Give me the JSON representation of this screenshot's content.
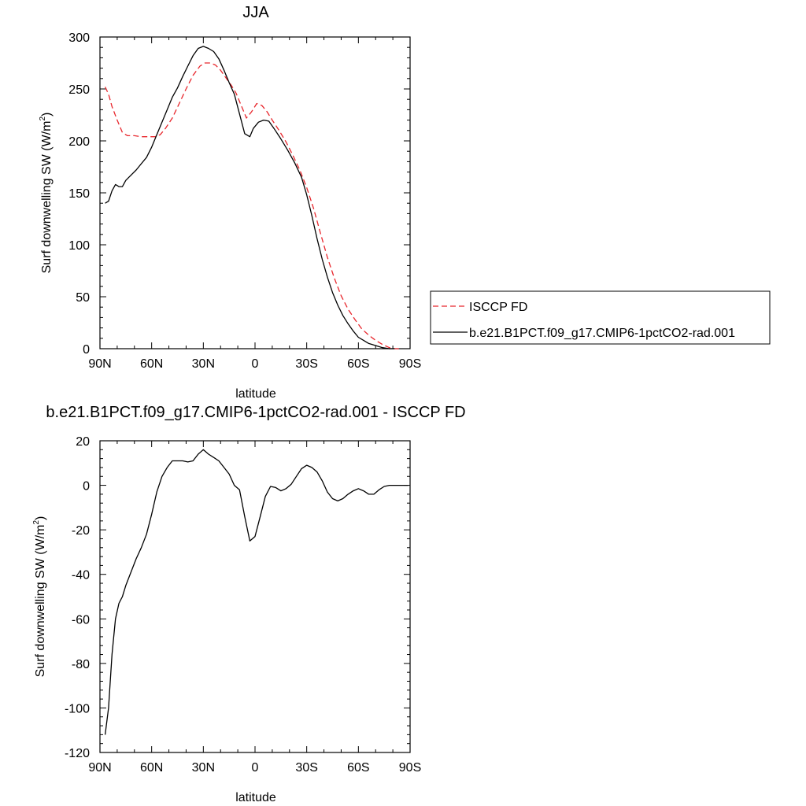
{
  "chart_data": [
    {
      "type": "line",
      "title": "JJA",
      "xlabel": "latitude",
      "ylabel_main": "Surf downwelling SW (W/m",
      "ylabel_sup": "2",
      "ylabel_end": ")",
      "xlim": [
        90,
        -90
      ],
      "ylim": [
        0,
        300
      ],
      "x_ticks": [
        90,
        60,
        30,
        0,
        -30,
        -60,
        -90
      ],
      "x_tick_labels": [
        "90N",
        "60N",
        "30N",
        "0",
        "30S",
        "60S",
        "90S"
      ],
      "y_ticks": [
        0,
        50,
        100,
        150,
        200,
        250,
        300
      ],
      "y_tick_labels": [
        "0",
        "50",
        "100",
        "150",
        "200",
        "250",
        "300"
      ],
      "legend_position": "right",
      "series": [
        {
          "name": "ISCCP FD",
          "color": "#e8262c",
          "dash": "dashed",
          "points": [
            [
              87,
              252
            ],
            [
              85,
              245
            ],
            [
              83,
              233
            ],
            [
              80,
              220
            ],
            [
              77,
              208
            ],
            [
              74,
              205
            ],
            [
              70,
              205
            ],
            [
              66,
              204
            ],
            [
              62,
              204
            ],
            [
              58,
              204
            ],
            [
              55,
              206
            ],
            [
              52,
              212
            ],
            [
              48,
              222
            ],
            [
              44,
              236
            ],
            [
              40,
              250
            ],
            [
              36,
              263
            ],
            [
              32,
              272
            ],
            [
              29,
              275
            ],
            [
              26,
              275
            ],
            [
              23,
              273
            ],
            [
              20,
              268
            ],
            [
              17,
              261
            ],
            [
              14,
              254
            ],
            [
              11,
              246
            ],
            [
              8,
              234
            ],
            [
              5,
              222
            ],
            [
              2,
              228
            ],
            [
              -1,
              236
            ],
            [
              -4,
              234
            ],
            [
              -7,
              228
            ],
            [
              -10,
              220
            ],
            [
              -14,
              210
            ],
            [
              -18,
              199
            ],
            [
              -22,
              186
            ],
            [
              -26,
              172
            ],
            [
              -30,
              155
            ],
            [
              -34,
              135
            ],
            [
              -38,
              111
            ],
            [
              -42,
              88
            ],
            [
              -46,
              68
            ],
            [
              -50,
              51
            ],
            [
              -54,
              38
            ],
            [
              -58,
              28
            ],
            [
              -62,
              19
            ],
            [
              -66,
              13
            ],
            [
              -70,
              8
            ],
            [
              -74,
              4
            ],
            [
              -78,
              1
            ],
            [
              -81,
              0
            ],
            [
              -85,
              0
            ]
          ]
        },
        {
          "name": "b.e21.B1PCT.f09_g17.CMIP6-1pctCO2-rad.001",
          "color": "#000000",
          "dash": "solid",
          "points": [
            [
              87,
              140
            ],
            [
              85,
              142
            ],
            [
              83,
              152
            ],
            [
              81,
              158
            ],
            [
              79,
              156
            ],
            [
              77,
              156
            ],
            [
              75,
              162
            ],
            [
              72,
              167
            ],
            [
              69,
              172
            ],
            [
              66,
              178
            ],
            [
              63,
              184
            ],
            [
              60,
              194
            ],
            [
              57,
              206
            ],
            [
              54,
              218
            ],
            [
              51,
              230
            ],
            [
              48,
              242
            ],
            [
              45,
              251
            ],
            [
              42,
              262
            ],
            [
              39,
              272
            ],
            [
              36,
              282
            ],
            [
              33,
              289
            ],
            [
              30,
              291
            ],
            [
              27,
              289
            ],
            [
              24,
              286
            ],
            [
              21,
              279
            ],
            [
              18,
              268
            ],
            [
              15,
              256
            ],
            [
              12,
              245
            ],
            [
              9,
              226
            ],
            [
              6,
              207
            ],
            [
              3,
              204
            ],
            [
              1,
              212
            ],
            [
              -2,
              218
            ],
            [
              -5,
              220
            ],
            [
              -8,
              219
            ],
            [
              -11,
              212
            ],
            [
              -15,
              202
            ],
            [
              -19,
              191
            ],
            [
              -23,
              179
            ],
            [
              -27,
              165
            ],
            [
              -30,
              148
            ],
            [
              -33,
              128
            ],
            [
              -36,
              106
            ],
            [
              -39,
              86
            ],
            [
              -42,
              69
            ],
            [
              -45,
              54
            ],
            [
              -48,
              42
            ],
            [
              -51,
              32
            ],
            [
              -54,
              24
            ],
            [
              -57,
              17
            ],
            [
              -60,
              11
            ],
            [
              -63,
              8
            ],
            [
              -66,
              5
            ],
            [
              -70,
              3
            ],
            [
              -74,
              1
            ],
            [
              -78,
              0
            ],
            [
              -81,
              0
            ]
          ]
        }
      ]
    },
    {
      "type": "line",
      "title": "b.e21.B1PCT.f09_g17.CMIP6-1pctCO2-rad.001 - ISCCP FD",
      "xlabel": "latitude",
      "ylabel_main": "Surf downwelling SW (W/m",
      "ylabel_sup": "2",
      "ylabel_end": ")",
      "xlim": [
        90,
        -90
      ],
      "ylim": [
        -120,
        20
      ],
      "x_ticks": [
        90,
        60,
        30,
        0,
        -30,
        -60,
        -90
      ],
      "x_tick_labels": [
        "90N",
        "60N",
        "30N",
        "0",
        "30S",
        "60S",
        "90S"
      ],
      "y_ticks": [
        -120,
        -100,
        -80,
        -60,
        -40,
        -20,
        0,
        20
      ],
      "y_tick_labels": [
        "-120",
        "-100",
        "-80",
        "-60",
        "-40",
        "-20",
        "0",
        "20"
      ],
      "series": [
        {
          "name": "",
          "color": "#000000",
          "dash": "solid",
          "points": [
            [
              87,
              -112
            ],
            [
              85,
              -100
            ],
            [
              83,
              -76
            ],
            [
              81,
              -60
            ],
            [
              79,
              -53
            ],
            [
              77,
              -50
            ],
            [
              75,
              -45
            ],
            [
              72,
              -39
            ],
            [
              69,
              -33
            ],
            [
              66,
              -28
            ],
            [
              63,
              -22
            ],
            [
              60,
              -13
            ],
            [
              57,
              -3
            ],
            [
              54,
              4
            ],
            [
              51,
              8
            ],
            [
              48,
              11
            ],
            [
              45,
              11
            ],
            [
              42,
              11
            ],
            [
              39,
              10.5
            ],
            [
              36,
              11
            ],
            [
              33,
              14
            ],
            [
              30,
              16
            ],
            [
              27,
              14
            ],
            [
              24,
              12.5
            ],
            [
              21,
              11
            ],
            [
              18,
              8
            ],
            [
              15,
              5
            ],
            [
              12,
              0
            ],
            [
              9,
              -2
            ],
            [
              6,
              -14
            ],
            [
              3,
              -25
            ],
            [
              0,
              -23
            ],
            [
              -3,
              -14
            ],
            [
              -6,
              -5
            ],
            [
              -9,
              -0.5
            ],
            [
              -12,
              -1
            ],
            [
              -15,
              -2.5
            ],
            [
              -18,
              -1.5
            ],
            [
              -21,
              0.5
            ],
            [
              -24,
              4
            ],
            [
              -27,
              7.5
            ],
            [
              -30,
              9
            ],
            [
              -33,
              8
            ],
            [
              -36,
              6
            ],
            [
              -39,
              2
            ],
            [
              -42,
              -3
            ],
            [
              -45,
              -6
            ],
            [
              -48,
              -7
            ],
            [
              -51,
              -6
            ],
            [
              -54,
              -4
            ],
            [
              -57,
              -2.5
            ],
            [
              -60,
              -1.5
            ],
            [
              -63,
              -2.5
            ],
            [
              -66,
              -4
            ],
            [
              -69,
              -4
            ],
            [
              -72,
              -2
            ],
            [
              -75,
              -0.5
            ],
            [
              -78,
              0
            ],
            [
              -81,
              0
            ],
            [
              -84,
              0
            ],
            [
              -87,
              0
            ],
            [
              -89,
              0
            ]
          ]
        }
      ]
    }
  ]
}
